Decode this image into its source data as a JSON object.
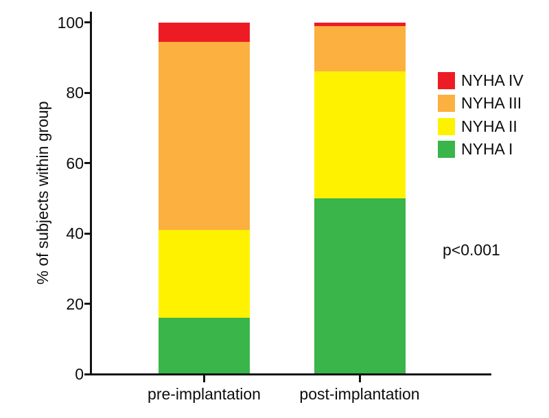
{
  "figure": {
    "ylabel": "% of subjects within group",
    "annotation": "p<0.001"
  },
  "legend": {
    "items": [
      {
        "label": "NYHA IV",
        "color": "#ED1C24"
      },
      {
        "label": "NYHA III",
        "color": "#FBB040"
      },
      {
        "label": "NYHA II",
        "color": "#FFF200"
      },
      {
        "label": "NYHA I",
        "color": "#39B54A"
      }
    ]
  },
  "chart_data": {
    "type": "bar",
    "stacked": true,
    "title": "",
    "xlabel": "",
    "ylabel": "% of subjects within group",
    "categories": [
      "pre-implantation",
      "post-implantation"
    ],
    "series": [
      {
        "name": "NYHA I",
        "color": "#39B54A",
        "values": [
          16,
          50
        ]
      },
      {
        "name": "NYHA II",
        "color": "#FFF200",
        "values": [
          25,
          36
        ]
      },
      {
        "name": "NYHA III",
        "color": "#FBB040",
        "values": [
          53.5,
          13
        ]
      },
      {
        "name": "NYHA IV",
        "color": "#ED1C24",
        "values": [
          5.5,
          1
        ]
      }
    ],
    "ylim": [
      0,
      100
    ],
    "yticks": [
      0,
      20,
      40,
      60,
      80,
      100
    ],
    "grid": false,
    "legend_position": "right",
    "legend_order": [
      "NYHA IV",
      "NYHA III",
      "NYHA II",
      "NYHA I"
    ],
    "annotation": "p<0.001"
  }
}
